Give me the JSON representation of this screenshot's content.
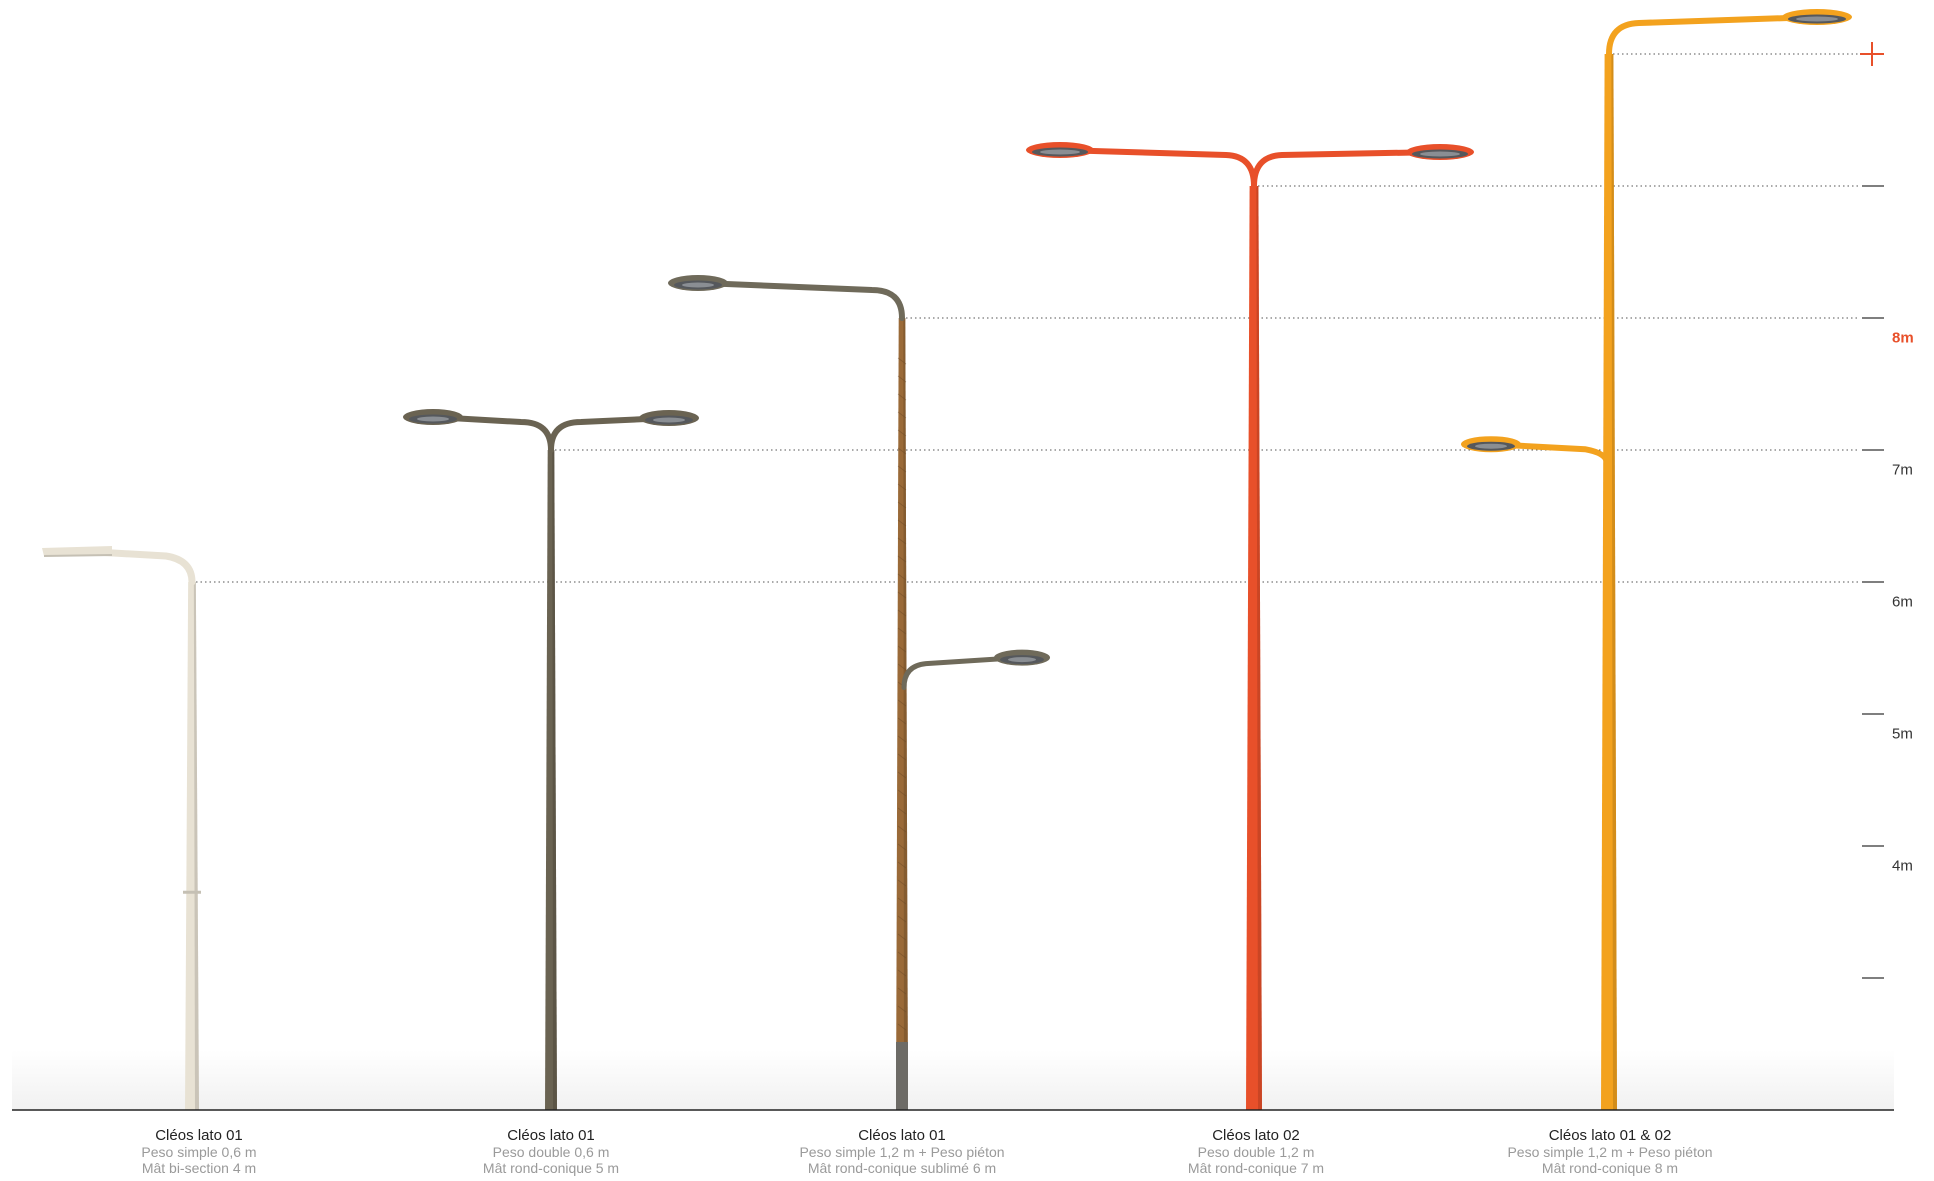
{
  "scale": {
    "highlight_color": "#e8502a",
    "ticks": [
      {
        "value": 1,
        "label": ""
      },
      {
        "value": 2,
        "label": ""
      },
      {
        "value": 3,
        "label": ""
      },
      {
        "value": 4,
        "label": "4m"
      },
      {
        "value": 5,
        "label": "5m"
      },
      {
        "value": 6,
        "label": "6m"
      },
      {
        "value": 7,
        "label": "7m"
      },
      {
        "value": 8,
        "label": "8m",
        "highlight": true
      }
    ]
  },
  "poles": [
    {
      "title": "Cléos lato 01",
      "line1": "Peso simple 0,6 m",
      "line2": "Mât bi-section 4 m",
      "height_m": 4,
      "color": "#e8e2d4",
      "arms": "single-left"
    },
    {
      "title": "Cléos lato 01",
      "line1": "Peso double 0,6 m",
      "line2": "Mât rond-conique 5 m",
      "height_m": 5,
      "color": "#6a6352",
      "arms": "double"
    },
    {
      "title": "Cléos lato 01",
      "line1": "Peso simple 1,2 m + Peso piéton",
      "line2": "Mât rond-conique sublimé 6 m",
      "height_m": 6,
      "color": "#9a6a38",
      "arms": "single-left-plus-pedestrian"
    },
    {
      "title": "Cléos lato 02",
      "line1": "Peso double 1,2 m",
      "line2": "Mât rond-conique 7 m",
      "height_m": 7,
      "color": "#e8502a",
      "arms": "double-wide"
    },
    {
      "title": "Cléos lato 01 & 02",
      "line1": "Peso simple 1,2 m + Peso piéton",
      "line2": "Mât rond-conique 8 m",
      "height_m": 8,
      "color": "#f3a21e",
      "arms": "single-right-plus-left-secondary"
    }
  ]
}
